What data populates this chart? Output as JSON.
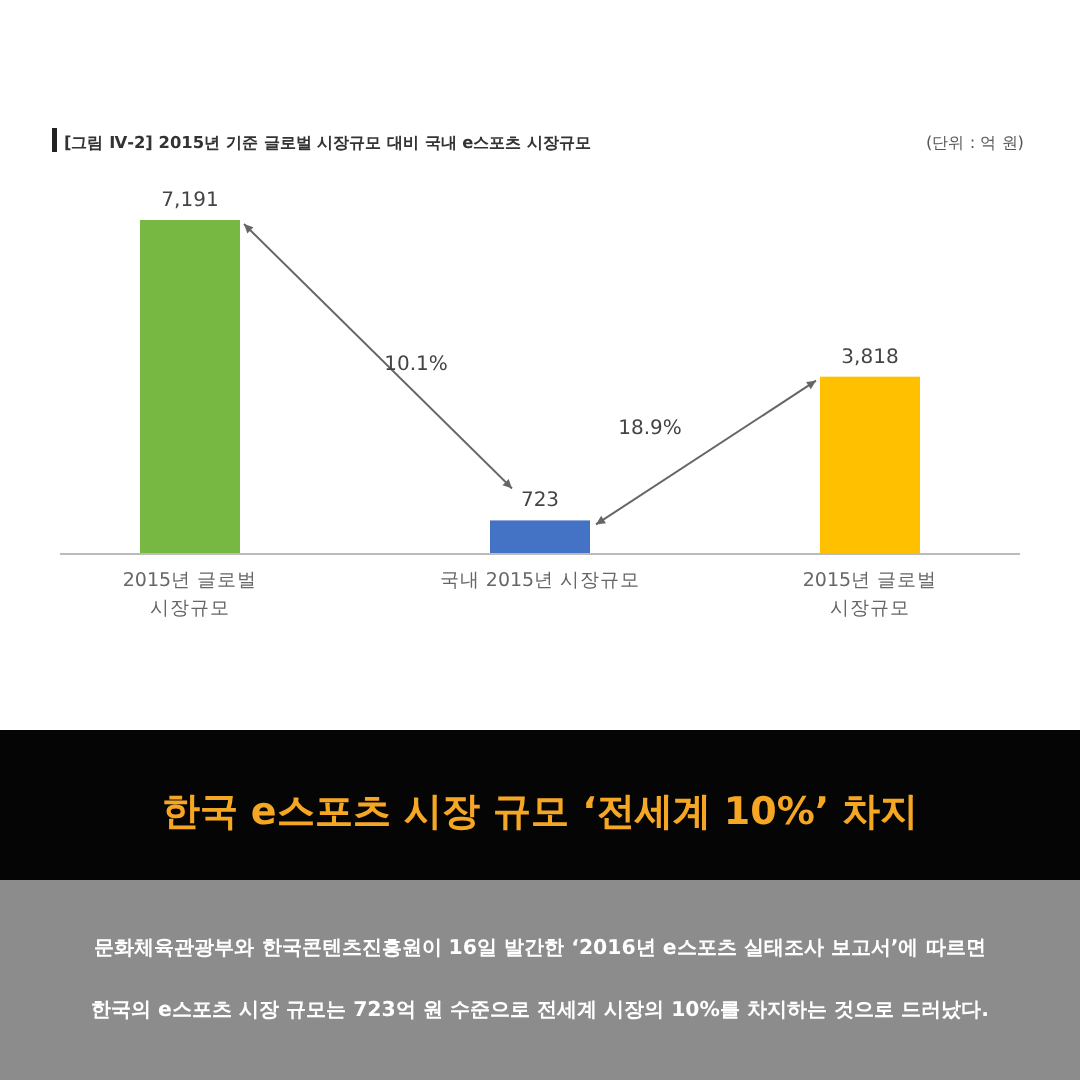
{
  "chart_data": {
    "type": "bar",
    "title": "[그림 Ⅳ-2] 2015년 기준 글로벌 시장규모 대비 국내 e스포츠 시장규모",
    "subtitle": "한국 e스포츠 시장 규모 ‘전세계 10%’ 차지",
    "categories": [
      "2015년 글로벌 시장규모",
      "국내 2015년 시장규모",
      "2015년 글로벌 시장규모"
    ],
    "values": [
      7191,
      723,
      3818
    ],
    "colors": [
      "#77b843",
      "#4472c4",
      "#ffc000"
    ],
    "value_labels": [
      "7,191",
      "723",
      "3,818"
    ],
    "annotations": [
      "(단위 : 억 원)",
      "10.1%",
      "18.9%",
      "문화체육관광부와 한국콘텐츠진흥원이 16일 발간한 ‘2016년 e스포츠 실태조사 보고서’에 따르면",
      "한국의 e스포츠 시장 규모는 723억 원 수준으로 전세계 시장의 10%를 차지하는 것으로 드러났다."
    ]
  }
}
